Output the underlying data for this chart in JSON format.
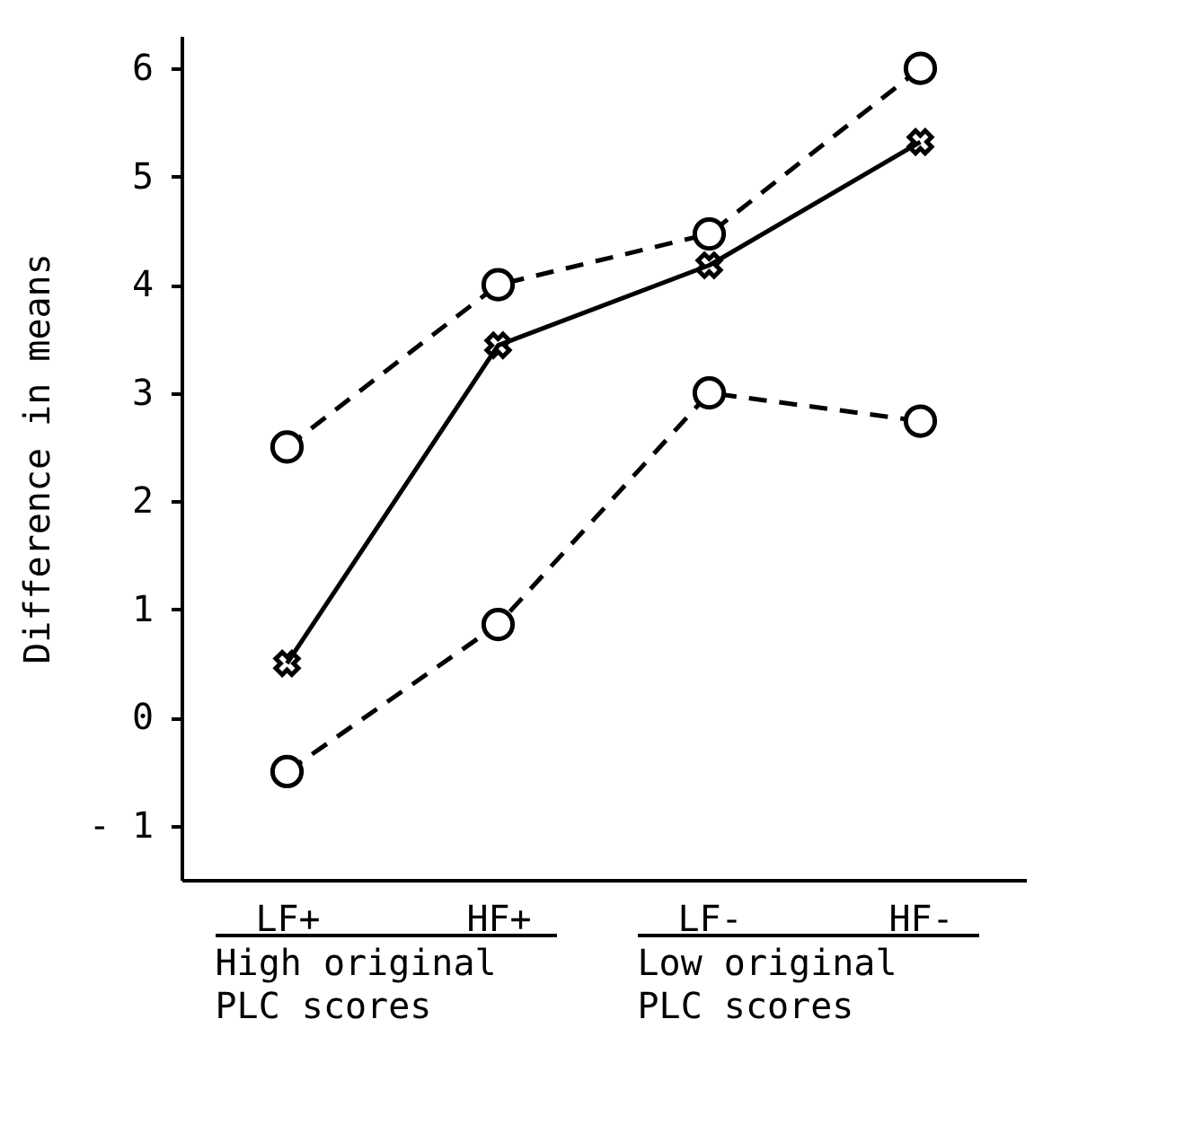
{
  "chart_data": {
    "type": "line",
    "ylabel": "Difference in means",
    "categories": [
      "LF+",
      "HF+",
      "LF-",
      "HF-"
    ],
    "ylim": [
      -1.5,
      6.3
    ],
    "yticks": [
      {
        "value": -1,
        "label": "- 1"
      },
      0,
      1,
      2,
      3,
      4,
      5,
      6
    ],
    "series": [
      {
        "color": "#000000",
        "marker": "circle",
        "line_style": "dashed",
        "values": [
          2.5,
          4.0,
          4.47,
          6.0
        ]
      },
      {
        "color": "#000000",
        "marker": "cross",
        "line_style": "solid",
        "values": [
          0.5,
          3.44,
          4.18,
          5.32
        ]
      },
      {
        "color": "#000000",
        "marker": "circle",
        "line_style": "dashed",
        "values": [
          -0.5,
          0.86,
          3.0,
          2.74
        ]
      }
    ],
    "annotations": [
      "High original PLC scores",
      "Low original PLC scores"
    ],
    "grid": false
  }
}
